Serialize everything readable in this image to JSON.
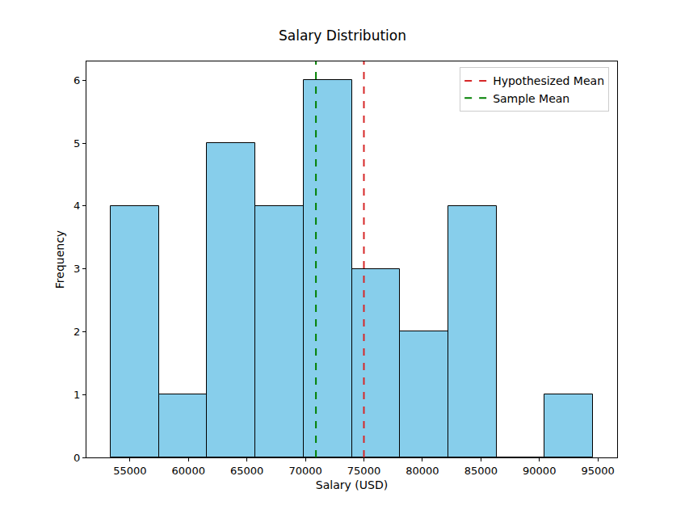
{
  "chart_data": {
    "type": "histogram",
    "title": "Salary Distribution",
    "x_label": "Salary (USD)",
    "y_label": "Frequency",
    "bins": [
      53345,
      57469,
      61593,
      65717,
      69841,
      73965,
      78089,
      82213,
      86337,
      90461,
      94585
    ],
    "counts": [
      4,
      1,
      5,
      4,
      6,
      3,
      2,
      4,
      0,
      1
    ],
    "color": "#87ceeb",
    "lines": [
      {
        "name": "Hypothesized Mean",
        "value": 75000,
        "color": "#d62728",
        "line_style": "dashed"
      },
      {
        "name": "Sample Mean",
        "value": 70900,
        "color": "#008000",
        "line_style": "dashed"
      }
    ],
    "xlim": [
      51283,
      96647
    ],
    "xticks": [
      55000,
      60000,
      65000,
      70000,
      75000,
      80000,
      85000,
      90000,
      95000
    ],
    "ylim": [
      0,
      6.3
    ],
    "yticks": [
      0,
      1,
      2,
      3,
      4,
      5,
      6
    ],
    "grid": false,
    "legend": "upper right"
  }
}
